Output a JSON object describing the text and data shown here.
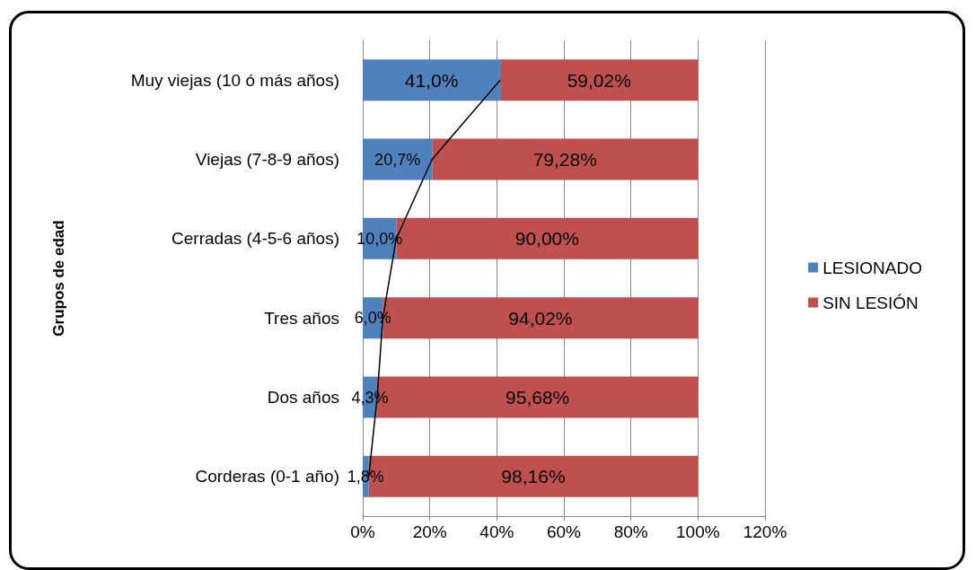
{
  "chart_data": {
    "type": "bar",
    "orientation": "horizontal",
    "stacked": true,
    "ylabel": "Grupos de edad",
    "categories": [
      "Muy viejas (10 ó más años)",
      "Viejas (7-8-9 años)",
      "Cerradas (4-5-6 años)",
      "Tres años",
      "Dos años",
      "Corderas (0-1 año)"
    ],
    "series": [
      {
        "name": "LESIONADO",
        "color": "#4f81bd",
        "values": [
          41.0,
          20.7,
          10.0,
          6.0,
          4.3,
          1.8
        ],
        "value_labels": [
          "41,0%",
          "20,7%",
          "10,0%",
          "6,0%",
          "4,3%",
          "1,8%"
        ]
      },
      {
        "name": "SIN LESIÓN",
        "color": "#c0504d",
        "values": [
          59.02,
          79.28,
          90.0,
          94.02,
          95.68,
          98.16
        ],
        "value_labels": [
          "59,02%",
          "79,28%",
          "90,00%",
          "94,02%",
          "95,68%",
          "98,16%"
        ]
      },
      {
        "type": "line",
        "color": "#000000",
        "marker": "none",
        "values": [
          41.0,
          20.7,
          10.0,
          6.0,
          4.3,
          1.8
        ]
      }
    ],
    "xlim": [
      0,
      120
    ],
    "xticks": [
      {
        "value": 0,
        "label": "0%"
      },
      {
        "value": 20,
        "label": "20%"
      },
      {
        "value": 40,
        "label": "40%"
      },
      {
        "value": 60,
        "label": "60%"
      },
      {
        "value": 80,
        "label": "80%"
      },
      {
        "value": 100,
        "label": "100%"
      },
      {
        "value": 120,
        "label": "120%"
      }
    ],
    "grid": "x",
    "legend": "right"
  }
}
